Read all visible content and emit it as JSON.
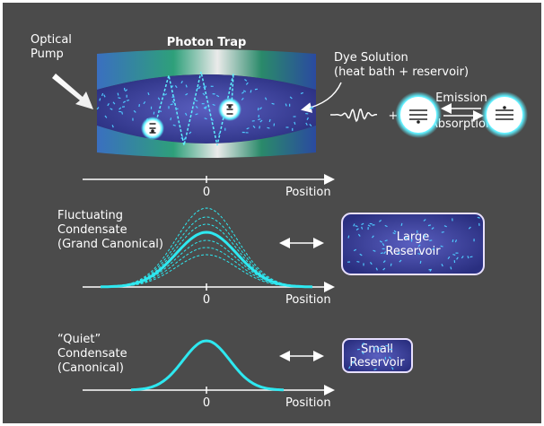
{
  "top": {
    "pump_label": [
      "Optical",
      "Pump"
    ],
    "trap_title": "Photon Trap",
    "dye_label": [
      "Dye Solution",
      "(heat bath + reservoir)"
    ],
    "plus": "+",
    "emission": "Emission",
    "absorption": "Absorption",
    "axis": {
      "zero": "0",
      "label": "Position"
    }
  },
  "middle": {
    "label": [
      "Fluctuating",
      "Condensate",
      "(Grand Canonical)"
    ],
    "reservoir": [
      "Large",
      "Reservoir"
    ],
    "axis": {
      "zero": "0",
      "label": "Position"
    }
  },
  "bottom": {
    "label": [
      "“Quiet”",
      "Condensate",
      "(Canonical)"
    ],
    "reservoir": [
      "Small",
      "Reservoir"
    ],
    "axis": {
      "zero": "0",
      "label": "Position"
    }
  }
}
